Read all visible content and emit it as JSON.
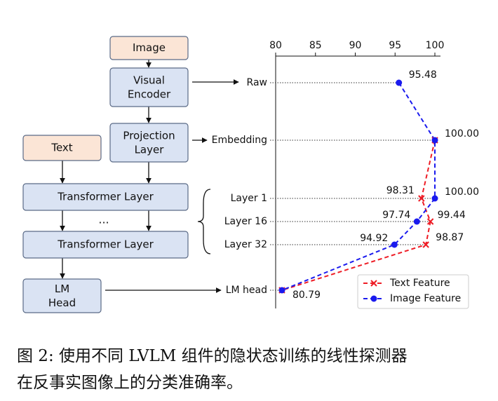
{
  "diagram": {
    "nodes": [
      "Image",
      "Visual\nEncoder",
      "Projection\nLayer",
      "Text",
      "Transformer Layer",
      "...",
      "Transformer Layer",
      "LM\nHead"
    ]
  },
  "chart_data": {
    "type": "line",
    "categories": [
      "Raw",
      "Embedding",
      "Layer 1",
      "Layer 16",
      "Layer 32",
      "LM head"
    ],
    "xlim": [
      80,
      100
    ],
    "xticks": [
      80,
      85,
      90,
      95,
      100
    ],
    "legend": "lower right",
    "series": [
      {
        "name": "Text Feature",
        "color": "#ee1c25",
        "marker": "x",
        "values": [
          null,
          100,
          98.31,
          99.44,
          98.87,
          80.79
        ],
        "value_labels": [
          null,
          null,
          "98.31",
          "99.44",
          "98.87",
          null
        ]
      },
      {
        "name": "Image Feature",
        "color": "#1a1aee",
        "marker": "o",
        "values": [
          95.48,
          100,
          100,
          97.74,
          94.92,
          80.79
        ],
        "value_labels": [
          "95.48",
          "100.00",
          "100.00",
          "97.74",
          "94.92",
          "80.79"
        ]
      }
    ]
  },
  "caption": [
    "图 2: 使用不同 LVLM 组件的隐状态训练的线性探测器",
    "在反事实图像上的分类准确率。"
  ]
}
